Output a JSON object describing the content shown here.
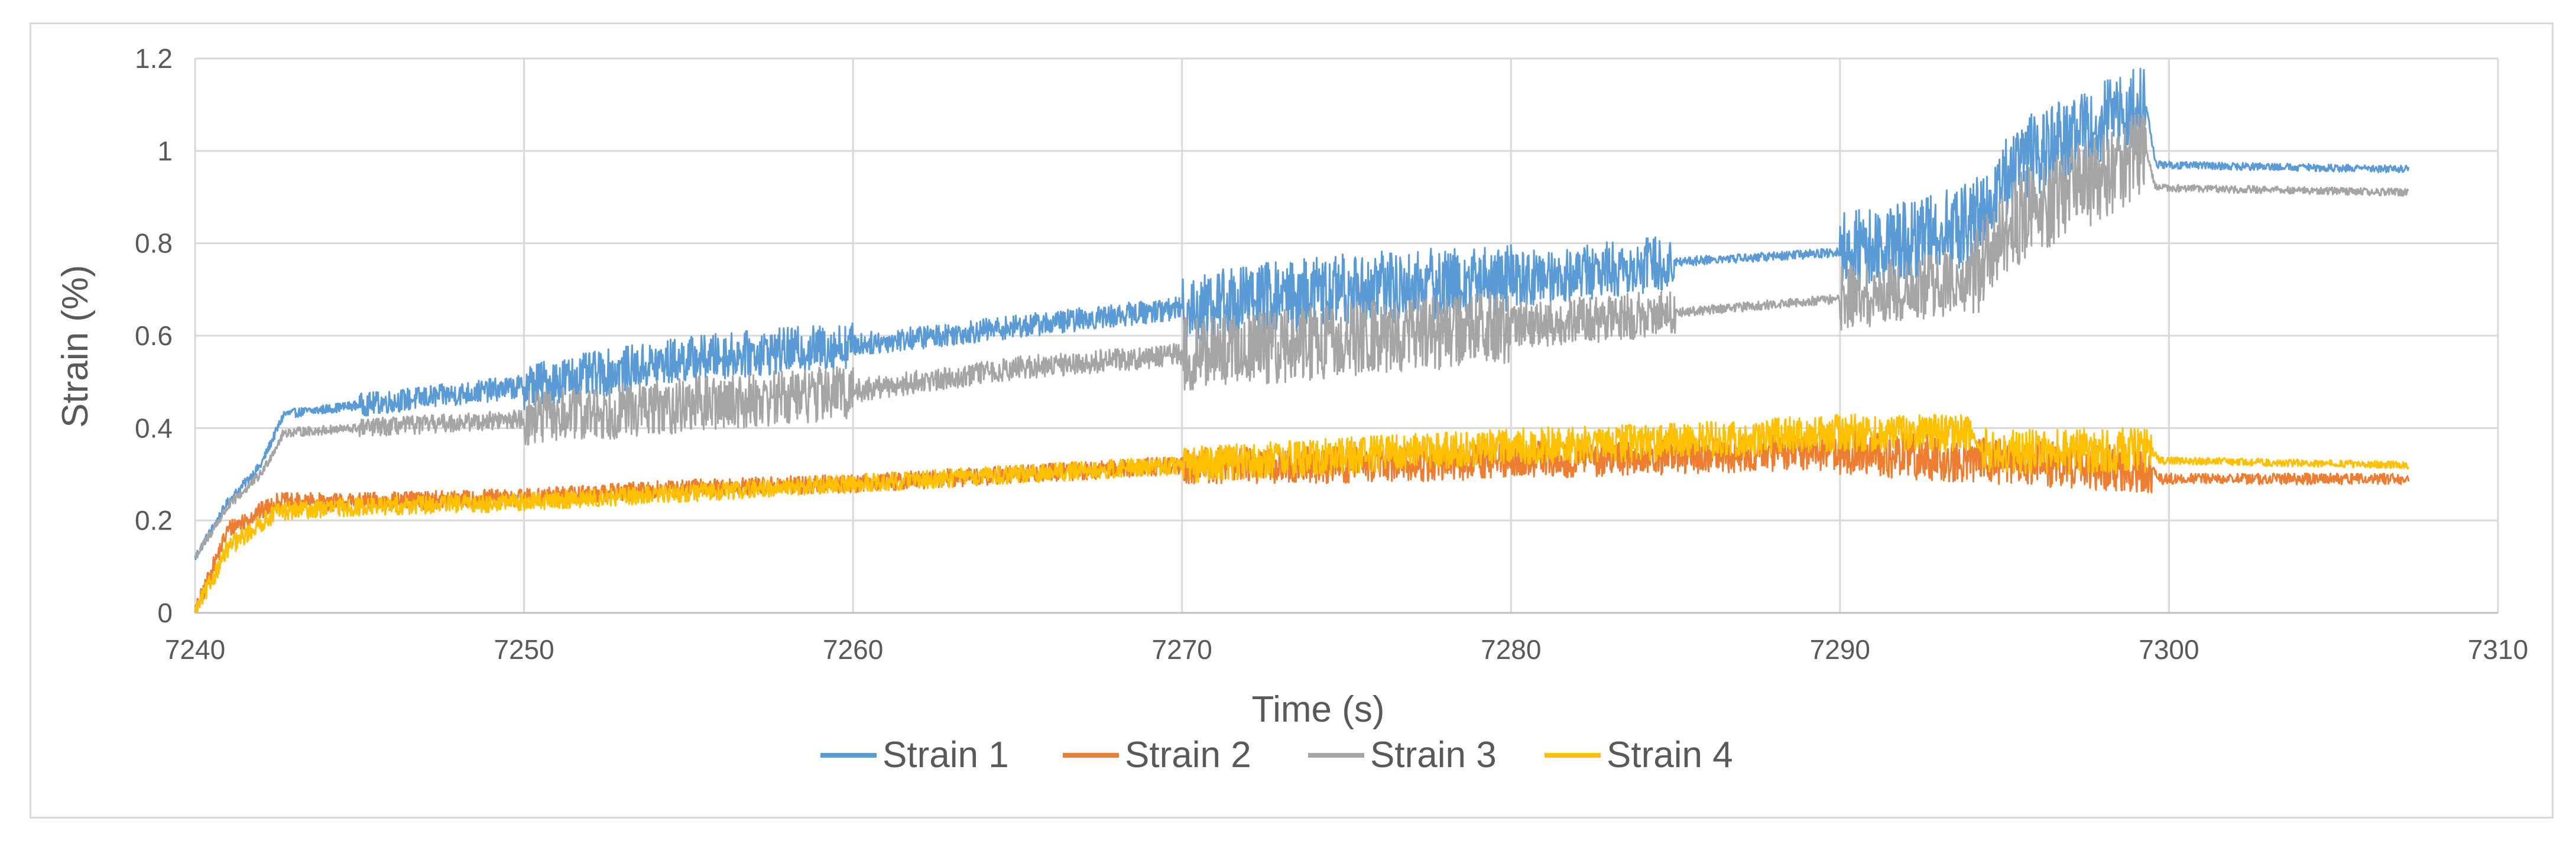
{
  "chart_data": {
    "type": "line",
    "title": "",
    "xlabel": "Time (s)",
    "ylabel": "Strain (%)",
    "xlim": [
      7240,
      7310
    ],
    "ylim": [
      0,
      1.2
    ],
    "x_ticks": [
      7240,
      7250,
      7260,
      7270,
      7280,
      7290,
      7300,
      7310
    ],
    "y_ticks": [
      0,
      0.2,
      0.4,
      0.6,
      0.8,
      1,
      1.2
    ],
    "grid": true,
    "legend_position": "bottom",
    "series": [
      {
        "name": "Strain 1",
        "color": "#5b9bd5",
        "points": [
          [
            7240,
            0.12
          ],
          [
            7241,
            0.24
          ],
          [
            7242,
            0.32
          ],
          [
            7242.7,
            0.43
          ],
          [
            7245,
            0.45
          ],
          [
            7250,
            0.49
          ],
          [
            7255,
            0.55
          ],
          [
            7260,
            0.58
          ],
          [
            7265,
            0.62
          ],
          [
            7270,
            0.66
          ],
          [
            7275,
            0.7
          ],
          [
            7280,
            0.72
          ],
          [
            7285,
            0.76
          ],
          [
            7290,
            0.78
          ],
          [
            7294,
            0.84
          ],
          [
            7295.5,
            0.98
          ],
          [
            7299.3,
            1.1
          ],
          [
            7299.6,
            0.97
          ],
          [
            7307.3,
            0.96
          ]
        ],
        "noise": [
          [
            7240,
            7245,
            0.01
          ],
          [
            7245,
            7250,
            0.025
          ],
          [
            7250,
            7260,
            0.05
          ],
          [
            7260,
            7270,
            0.025
          ],
          [
            7270,
            7280,
            0.08
          ],
          [
            7280,
            7285,
            0.06
          ],
          [
            7285,
            7290,
            0.01
          ],
          [
            7290,
            7294,
            0.09
          ],
          [
            7294,
            7299.3,
            0.09
          ],
          [
            7299.6,
            7307.3,
            0.008
          ]
        ]
      },
      {
        "name": "Strain 2",
        "color": "#ed7d31",
        "points": [
          [
            7240,
            0.0
          ],
          [
            7241,
            0.18
          ],
          [
            7242.5,
            0.24
          ],
          [
            7245,
            0.24
          ],
          [
            7250,
            0.25
          ],
          [
            7255,
            0.27
          ],
          [
            7260,
            0.28
          ],
          [
            7265,
            0.3
          ],
          [
            7270,
            0.32
          ],
          [
            7275,
            0.32
          ],
          [
            7280,
            0.33
          ],
          [
            7285,
            0.34
          ],
          [
            7290,
            0.35
          ],
          [
            7294,
            0.33
          ],
          [
            7299.5,
            0.31
          ],
          [
            7299.7,
            0.29
          ],
          [
            7307.3,
            0.29
          ]
        ],
        "noise": [
          [
            7240,
            7270,
            0.02
          ],
          [
            7270,
            7290,
            0.04
          ],
          [
            7290,
            7299.5,
            0.05
          ],
          [
            7299.7,
            7307.3,
            0.012
          ]
        ]
      },
      {
        "name": "Strain 3",
        "color": "#a5a5a5",
        "points": [
          [
            7240,
            0.12
          ],
          [
            7241,
            0.23
          ],
          [
            7242,
            0.3
          ],
          [
            7242.7,
            0.39
          ],
          [
            7245,
            0.4
          ],
          [
            7250,
            0.42
          ],
          [
            7255,
            0.45
          ],
          [
            7260,
            0.48
          ],
          [
            7265,
            0.53
          ],
          [
            7270,
            0.56
          ],
          [
            7275,
            0.59
          ],
          [
            7280,
            0.62
          ],
          [
            7285,
            0.65
          ],
          [
            7290,
            0.68
          ],
          [
            7294,
            0.72
          ],
          [
            7295.5,
            0.86
          ],
          [
            7299.3,
            1.0
          ],
          [
            7299.6,
            0.92
          ],
          [
            7307.3,
            0.91
          ]
        ],
        "noise": [
          [
            7240,
            7245,
            0.01
          ],
          [
            7245,
            7250,
            0.02
          ],
          [
            7250,
            7260,
            0.06
          ],
          [
            7260,
            7270,
            0.025
          ],
          [
            7270,
            7280,
            0.08
          ],
          [
            7280,
            7285,
            0.05
          ],
          [
            7285,
            7290,
            0.01
          ],
          [
            7290,
            7294,
            0.07
          ],
          [
            7294,
            7299.3,
            0.1
          ],
          [
            7299.6,
            7307.3,
            0.008
          ]
        ]
      },
      {
        "name": "Strain 4",
        "color": "#ffc000",
        "points": [
          [
            7240,
            0.0
          ],
          [
            7241,
            0.14
          ],
          [
            7242.5,
            0.22
          ],
          [
            7245,
            0.23
          ],
          [
            7250,
            0.24
          ],
          [
            7255,
            0.26
          ],
          [
            7260,
            0.28
          ],
          [
            7265,
            0.3
          ],
          [
            7270,
            0.32
          ],
          [
            7275,
            0.34
          ],
          [
            7280,
            0.36
          ],
          [
            7285,
            0.37
          ],
          [
            7290,
            0.39
          ],
          [
            7294,
            0.39
          ],
          [
            7294.3,
            0.35
          ],
          [
            7299.5,
            0.35
          ],
          [
            7299.7,
            0.33
          ],
          [
            7307.3,
            0.32
          ]
        ],
        "noise": [
          [
            7240,
            7270,
            0.02
          ],
          [
            7270,
            7290,
            0.04
          ],
          [
            7290,
            7294,
            0.04
          ],
          [
            7294.3,
            7299.5,
            0.05
          ],
          [
            7299.7,
            7307.3,
            0.008
          ]
        ]
      }
    ]
  }
}
